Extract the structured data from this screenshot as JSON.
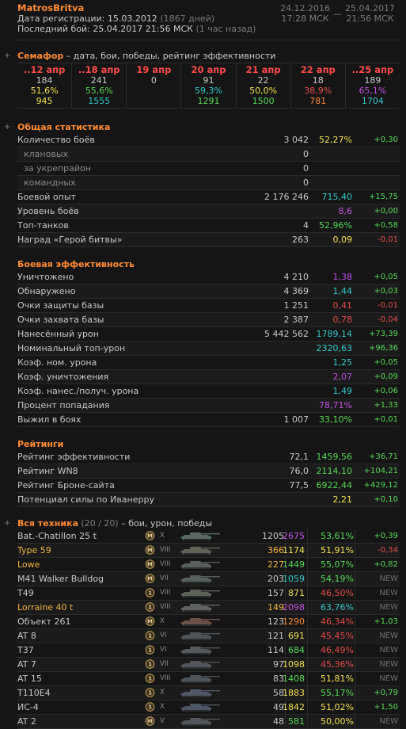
{
  "header": {
    "player": "MatrosBritva",
    "reg_label": "Дата регистрации:",
    "reg_date": "15.03.2012",
    "reg_days": "(1867 дней)",
    "last_label": "Последний бой:",
    "last_date": "25.04.2017 21:56 МСК",
    "last_ago": "(1 час назад)",
    "range_from_date": "24.12.2016",
    "range_from_time": "17:28 МСК",
    "range_dash": "—",
    "range_to_date": "25.04.2017",
    "range_to_time": "21:56 МСК"
  },
  "semaphore": {
    "title": "Семафор",
    "subtitle": " – дата, бои, победы, рейтинг эффективности",
    "days": [
      {
        "date": "..12 апр",
        "battles": "184",
        "win": "51,6%",
        "rating": "945",
        "date_color": "#ff4a4a",
        "win_color": "#f0e050",
        "rating_color": "#f0e050"
      },
      {
        "date": "..18 апр",
        "battles": "241",
        "win": "55,6%",
        "rating": "1555",
        "date_color": "#ff4a4a",
        "win_color": "#56d856",
        "rating_color": "#33c8c8"
      },
      {
        "date": "19 апр",
        "battles": "0",
        "win": "",
        "rating": "",
        "date_color": "#ff4a4a",
        "win_color": "#c8c8c8",
        "rating_color": "#c8c8c8"
      },
      {
        "date": "20 апр",
        "battles": "91",
        "win": "59,3%",
        "rating": "1291",
        "date_color": "#ff4a4a",
        "win_color": "#33c8c8",
        "rating_color": "#56d856"
      },
      {
        "date": "21 апр",
        "battles": "22",
        "win": "50,0%",
        "rating": "1500",
        "date_color": "#ff4a4a",
        "win_color": "#f0e050",
        "rating_color": "#56d856"
      },
      {
        "date": "22 апр",
        "battles": "18",
        "win": "38,9%",
        "rating": "781",
        "date_color": "#ff4a4a",
        "win_color": "#e64b4b",
        "rating_color": "#ff8a33"
      },
      {
        "date": "..25 апр",
        "battles": "189",
        "win": "65,1%",
        "rating": "1704",
        "date_color": "#ff4a4a",
        "win_color": "#c050e0",
        "rating_color": "#33c8c8"
      }
    ]
  },
  "general": {
    "title": "Общая статистика",
    "rows": [
      {
        "label": "Количество боёв",
        "v1": "3 042",
        "v2": "52,27%",
        "v2_color": "#f0e050",
        "v3": "+0,30",
        "v3_type": "pos",
        "indent": false
      },
      {
        "label": "клановых",
        "v1": "0",
        "v2": "",
        "v2_color": "#c8c8c8",
        "v3": "",
        "v3_type": "",
        "indent": true
      },
      {
        "label": "за укрепрайон",
        "v1": "0",
        "v2": "",
        "v2_color": "#c8c8c8",
        "v3": "",
        "v3_type": "",
        "indent": true
      },
      {
        "label": "командных",
        "v1": "0",
        "v2": "",
        "v2_color": "#c8c8c8",
        "v3": "",
        "v3_type": "",
        "indent": true
      },
      {
        "label": "Боевой опыт",
        "v1": "2 176 246",
        "v2": "715,40",
        "v2_color": "#33c8c8",
        "v3": "+15,75",
        "v3_type": "pos",
        "indent": false
      },
      {
        "label": "Уровень боёв",
        "v1": "",
        "v2": "8,6",
        "v2_color": "#c050e0",
        "v3": "+0,00",
        "v3_type": "pos",
        "indent": false
      },
      {
        "label": "Топ-танков",
        "v1": "4",
        "v2": "52,96%",
        "v2_color": "#56d856",
        "v3": "+0,58",
        "v3_type": "pos",
        "indent": false
      },
      {
        "label": "Наград «Герой битвы»",
        "v1": "263",
        "v2": "0,09",
        "v2_color": "#f0e050",
        "v3": "-0,01",
        "v3_type": "neg",
        "indent": false
      }
    ]
  },
  "battle": {
    "title": "Боевая эффективность",
    "rows": [
      {
        "label": "Уничтожено",
        "v1": "4 210",
        "v2": "1,38",
        "v2_color": "#c050e0",
        "v3": "+0,05",
        "v3_type": "pos"
      },
      {
        "label": "Обнаружено",
        "v1": "4 369",
        "v2": "1,44",
        "v2_color": "#33c8c8",
        "v3": "+0,03",
        "v3_type": "pos"
      },
      {
        "label": "Очки защиты базы",
        "v1": "1 251",
        "v2": "0,41",
        "v2_color": "#e64b4b",
        "v3": "-0,01",
        "v3_type": "neg"
      },
      {
        "label": "Очки захвата базы",
        "v1": "2 387",
        "v2": "0,78",
        "v2_color": "#e64b4b",
        "v3": "-0,04",
        "v3_type": "neg"
      },
      {
        "label": "Нанесённый урон",
        "v1": "5 442 562",
        "v2": "1789,14",
        "v2_color": "#33c8c8",
        "v3": "+73,39",
        "v3_type": "pos"
      },
      {
        "label": "Номинальный топ-урон",
        "v1": "",
        "v2": "2320,63",
        "v2_color": "#33c8c8",
        "v3": "+96,36",
        "v3_type": "pos"
      },
      {
        "label": "Коэф. ном. урона",
        "v1": "",
        "v2": "1,25",
        "v2_color": "#33c8c8",
        "v3": "+0,05",
        "v3_type": "pos"
      },
      {
        "label": "Коэф. уничтожения",
        "v1": "",
        "v2": "2,07",
        "v2_color": "#c050e0",
        "v3": "+0,09",
        "v3_type": "pos"
      },
      {
        "label": "Коэф. нанес./получ. урона",
        "v1": "",
        "v2": "1,49",
        "v2_color": "#33c8c8",
        "v3": "+0,06",
        "v3_type": "pos"
      },
      {
        "label": "Процент попадания",
        "v1": "",
        "v2": "78,71%",
        "v2_color": "#c050e0",
        "v3": "+1,33",
        "v3_type": "pos"
      },
      {
        "label": "Выжил в боях",
        "v1": "1 007",
        "v2": "33,10%",
        "v2_color": "#56d856",
        "v3": "+0,01",
        "v3_type": "pos"
      }
    ]
  },
  "ratings": {
    "title": "Рейтинги",
    "rows": [
      {
        "label": "Рейтинг эффективности",
        "v1": "72,1",
        "v2": "1459,56",
        "v2_color": "#56d856",
        "v3": "+36,71",
        "v3_type": "pos"
      },
      {
        "label": "Рейтинг WN8",
        "v1": "76,0",
        "v2": "2114,10",
        "v2_color": "#56d856",
        "v3": "+104,21",
        "v3_type": "pos"
      },
      {
        "label": "Рейтинг Броне-сайта",
        "v1": "77,5",
        "v2": "6922,44",
        "v2_color": "#56d856",
        "v3": "+429,12",
        "v3_type": "pos"
      },
      {
        "label": "Потенциал силы по Иванерру",
        "v1": "",
        "v2": "2,21",
        "v2_color": "#f0e050",
        "v3": "+0,10",
        "v3_type": "pos"
      }
    ]
  },
  "vehicles": {
    "title": "Вся техника",
    "count": " (20 / 20)",
    "subtitle": " – бои, урон, победы",
    "rows": [
      {
        "name": "Bat.-Chatillon 25 t",
        "premium": false,
        "mark": "M",
        "tier": "X",
        "battles": "1205",
        "battles_premium": false,
        "dmg": "2675",
        "dmg_color": "#c050e0",
        "win": "53,61%",
        "win_color": "#56d856",
        "trend": "+0,39",
        "trend_type": "pos",
        "tank_color": "#5a6a60"
      },
      {
        "name": "Type 59",
        "premium": true,
        "mark": "M",
        "tier": "VIII",
        "battles": "366",
        "battles_premium": true,
        "dmg": "1174",
        "dmg_color": "#f0e050",
        "win": "51,91%",
        "win_color": "#f0e050",
        "trend": "-0,34",
        "trend_type": "neg",
        "tank_color": "#5f6456"
      },
      {
        "name": "Lowe",
        "premium": true,
        "mark": "M",
        "tier": "VIII",
        "battles": "227",
        "battles_premium": true,
        "dmg": "1449",
        "dmg_color": "#56d856",
        "win": "55,07%",
        "win_color": "#56d856",
        "trend": "+0,82",
        "trend_type": "pos",
        "tank_color": "#5a5f60"
      },
      {
        "name": "M41 Walker Bulldog",
        "premium": false,
        "mark": "M",
        "tier": "VII",
        "battles": "203",
        "battles_premium": false,
        "dmg": "1059",
        "dmg_color": "#33c8c8",
        "win": "54,19%",
        "win_color": "#56d856",
        "trend": "NEW",
        "trend_type": "new",
        "tank_color": "#56605a"
      },
      {
        "name": "T49",
        "premium": false,
        "mark": "1",
        "tier": "VIII",
        "battles": "157",
        "battles_premium": false,
        "dmg": "871",
        "dmg_color": "#f0e050",
        "win": "46,50%",
        "win_color": "#e64b4b",
        "trend": "NEW",
        "trend_type": "new",
        "tank_color": "#5c6258"
      },
      {
        "name": "Lorraine 40 t",
        "premium": true,
        "mark": "1",
        "tier": "VIII",
        "battles": "149",
        "battles_premium": true,
        "dmg": "2098",
        "dmg_color": "#c050e0",
        "win": "63,76%",
        "win_color": "#33c8c8",
        "trend": "NEW",
        "trend_type": "new",
        "tank_color": "#5e6360"
      },
      {
        "name": "Объект 261",
        "premium": false,
        "mark": "M",
        "tier": "X",
        "battles": "123",
        "battles_premium": false,
        "dmg": "1290",
        "dmg_color": "#ff8a33",
        "win": "46,34%",
        "win_color": "#e64b4b",
        "trend": "+1,03",
        "trend_type": "pos",
        "tank_color": "#6a5048"
      },
      {
        "name": "AT 8",
        "premium": false,
        "mark": "1",
        "tier": "VI",
        "battles": "121",
        "battles_premium": false,
        "dmg": "691",
        "dmg_color": "#f0e050",
        "win": "45,45%",
        "win_color": "#e64b4b",
        "trend": "NEW",
        "trend_type": "new",
        "tank_color": "#4f5458"
      },
      {
        "name": "T37",
        "premium": false,
        "mark": "1",
        "tier": "VI",
        "battles": "114",
        "battles_premium": false,
        "dmg": "684",
        "dmg_color": "#56d856",
        "win": "46,49%",
        "win_color": "#e64b4b",
        "trend": "NEW",
        "trend_type": "new",
        "tank_color": "#55595c"
      },
      {
        "name": "AT 7",
        "premium": false,
        "mark": "1",
        "tier": "VII",
        "battles": "97",
        "battles_premium": false,
        "dmg": "1098",
        "dmg_color": "#f0e050",
        "win": "45,36%",
        "win_color": "#e64b4b",
        "trend": "NEW",
        "trend_type": "new",
        "tank_color": "#515559"
      },
      {
        "name": "AT 15",
        "premium": false,
        "mark": "1",
        "tier": "VIII",
        "battles": "83",
        "battles_premium": false,
        "dmg": "1408",
        "dmg_color": "#56d856",
        "win": "51,81%",
        "win_color": "#f0e050",
        "trend": "NEW",
        "trend_type": "new",
        "tank_color": "#4e5357"
      },
      {
        "name": "T110E4",
        "premium": false,
        "mark": "1",
        "tier": "X",
        "battles": "58",
        "battles_premium": false,
        "dmg": "1883",
        "dmg_color": "#f0e050",
        "win": "55,17%",
        "win_color": "#56d856",
        "trend": "+0,79",
        "trend_type": "pos",
        "tank_color": "#505866"
      },
      {
        "name": "ИС-4",
        "premium": false,
        "mark": "1",
        "tier": "X",
        "battles": "49",
        "battles_premium": false,
        "dmg": "1842",
        "dmg_color": "#f0e050",
        "win": "51,02%",
        "win_color": "#f0e050",
        "trend": "+1,50",
        "trend_type": "pos",
        "tank_color": "#4c5462"
      },
      {
        "name": "AT 2",
        "premium": false,
        "mark": "M",
        "tier": "V",
        "battles": "48",
        "battles_premium": false,
        "dmg": "581",
        "dmg_color": "#56d856",
        "win": "50,00%",
        "win_color": "#f0e050",
        "trend": "NEW",
        "trend_type": "new",
        "tank_color": "#52565a"
      }
    ]
  },
  "colors": {
    "accent": "#ff8a33",
    "text": "#c8c8c8",
    "muted": "#7a7a7a",
    "positive": "#56d856",
    "negative": "#e64b4b"
  }
}
